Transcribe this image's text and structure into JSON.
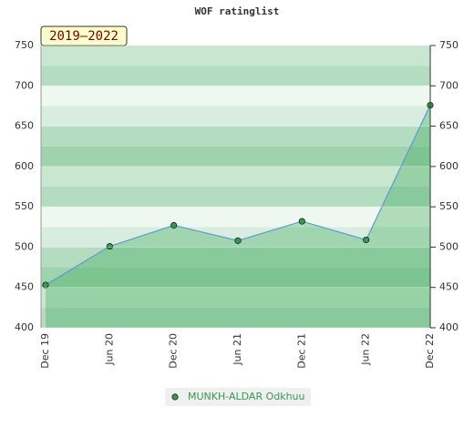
{
  "chart_data": {
    "type": "area",
    "title": "WOF ratinglist",
    "period_label": "2019–2022",
    "categories": [
      "Dec 19",
      "Jun 20",
      "Dec 20",
      "Jun 21",
      "Dec 21",
      "Jun 22",
      "Dec 22"
    ],
    "series": [
      {
        "name": "MUNKH-ALDAR Odkhuu",
        "color": "#2e9e4e",
        "values": [
          453,
          501,
          527,
          508,
          532,
          509,
          676
        ]
      }
    ],
    "ylim": [
      400,
      750
    ],
    "yticks": [
      400,
      450,
      500,
      550,
      600,
      650,
      700,
      750
    ],
    "grid": true
  }
}
